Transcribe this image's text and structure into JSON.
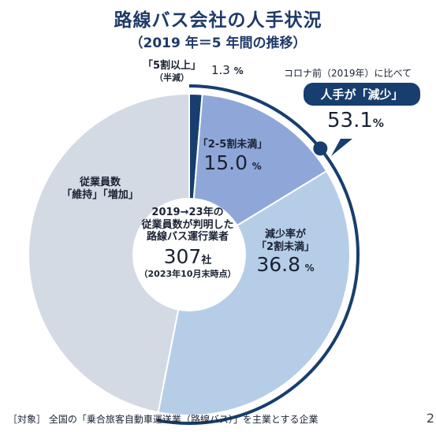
{
  "header": {
    "title": "路線バス会社の人手状況",
    "subtitle": "（2019 年＝5 年間の推移）"
  },
  "colors": {
    "dark_navy": "#173e6e",
    "slice_5plus": "#173e6e",
    "slice_2to5": "#8fa7d8",
    "slice_under2": "#b6cde7",
    "slice_maintain": "#d3dae3",
    "arc": "#173e6e"
  },
  "chart_data": {
    "type": "pie",
    "title": "路線バス会社の人手状況",
    "subtitle": "（2019 年＝5 年間の推移）",
    "slices": [
      {
        "label": "「5割以上」",
        "sublabel": "（半減）",
        "value": 1.3
      },
      {
        "label": "「2-5割未満」",
        "value": 15.0
      },
      {
        "label": "減少率が",
        "sublabel": "「2割未満」",
        "value": 36.8
      },
      {
        "label": "従業員数",
        "sublabel": "「維持」「増加」",
        "value": 46.9
      }
    ],
    "total_decrease": 53.1,
    "center": {
      "line1": "2019→23年の",
      "line2": "従業員数が判明した",
      "line3": "路線バス運行業者",
      "count": "307",
      "count_unit": "社",
      "note": "（2023年10月末時点）"
    },
    "callout": {
      "intro": "コロナ前（2019年）に比べて",
      "badge": "人手が「減少」",
      "value": "53.1",
      "unit": "%"
    }
  },
  "labels": {
    "s1_value": "1.3",
    "s2_value": "15.0",
    "s3_value": "36.8",
    "percent": "%"
  },
  "footer": {
    "note": "［対象］ 全国の「乗合旅客自動車運送業（路線バス）」を主業とする企業",
    "page": "2"
  }
}
